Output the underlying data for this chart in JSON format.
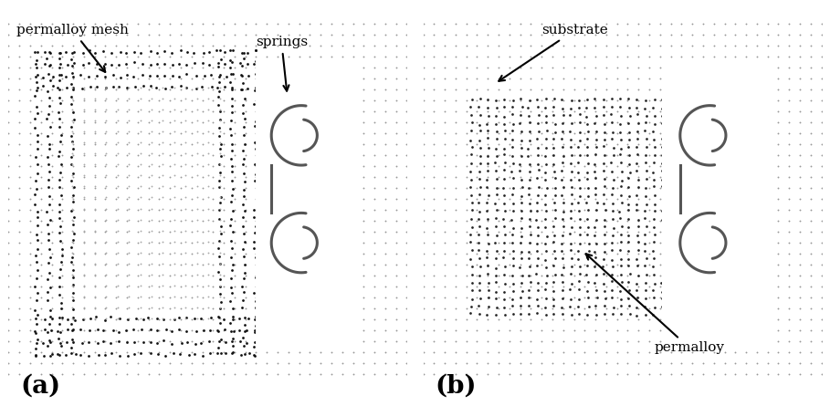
{
  "fig_width": 9.09,
  "fig_height": 4.45,
  "dpi": 100,
  "bg_color": "#ffffff",
  "label_a": "(a)",
  "label_b": "(b)",
  "ann_permalloy_mesh": "permalloy mesh",
  "ann_springs": "springs",
  "ann_substrate": "substrate",
  "ann_permalloy": "permalloy",
  "font_size_label": 20,
  "font_size_ann": 11,
  "light_bg": "#c8c8c8",
  "medium_bg": "#b0b0b0",
  "dark_permalloy": "#303030",
  "spring_white": "#f0f0f0",
  "inner_light": "#c0c0c0"
}
